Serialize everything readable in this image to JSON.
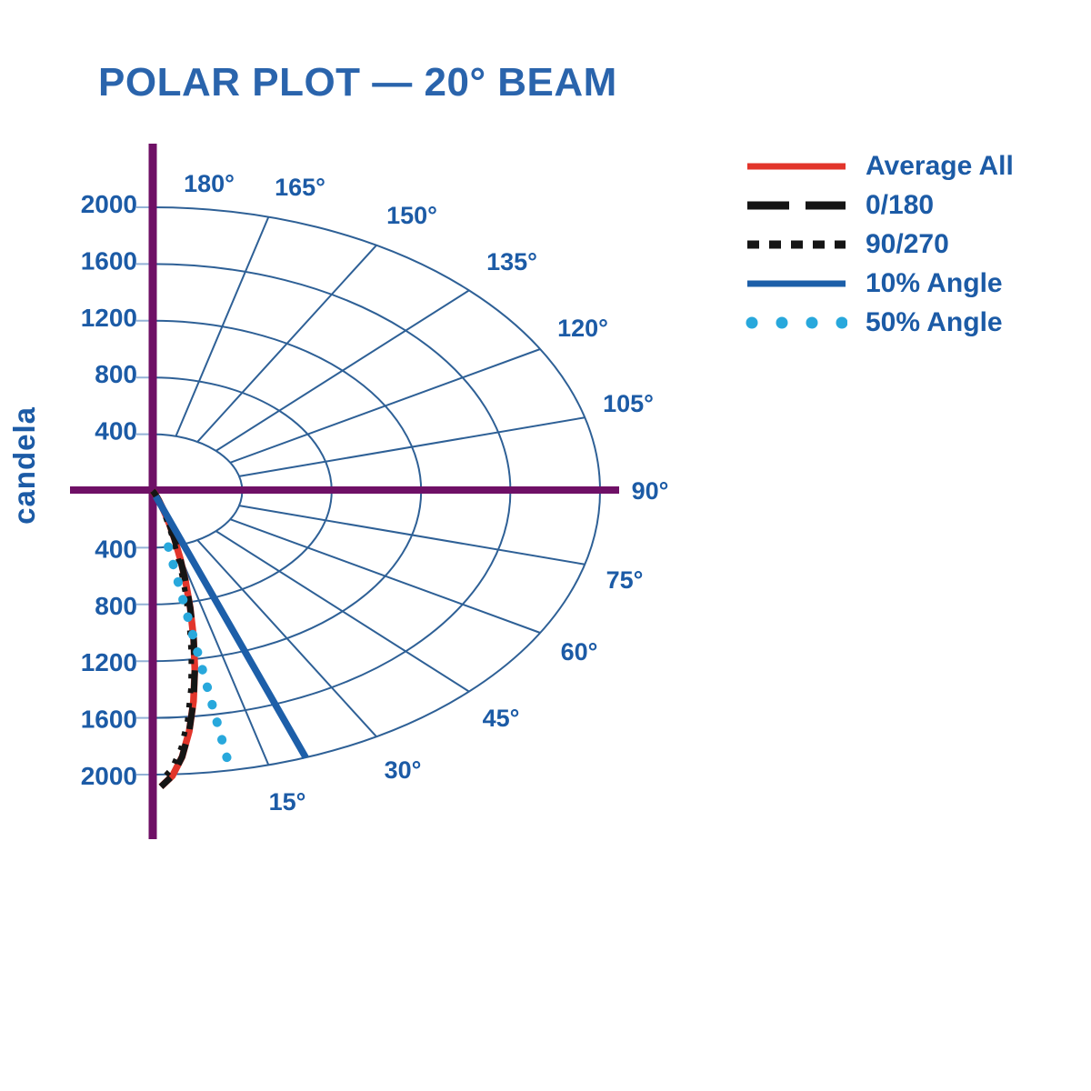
{
  "title": "POLAR PLOT — 20° BEAM",
  "chart_data": {
    "type": "polar",
    "subtype": "photometric-beam-distribution",
    "title": "POLAR PLOT — 20° BEAM",
    "radial_axis_label": "candela",
    "radial_ticks": [
      400,
      800,
      1200,
      1600,
      2000
    ],
    "radial_range": [
      0,
      2000
    ],
    "angle_values_deg": [
      15,
      30,
      45,
      60,
      75,
      90,
      105,
      120,
      135,
      150,
      165,
      180
    ],
    "angle_tick_labels": [
      "15°",
      "30°",
      "45°",
      "60°",
      "75°",
      "90°",
      "105°",
      "120°",
      "135°",
      "150°",
      "165°",
      "180°"
    ],
    "grid": true,
    "legend_position": "right",
    "colors": {
      "title": "#2a64ac",
      "labels": "#1c5ba6",
      "grid": "#2e6096",
      "axes": "#6f1066",
      "tick_marks": "#93b2d6"
    },
    "series": [
      {
        "name": "Average All",
        "type": "intensity-curve",
        "line_style": "solid",
        "color": "#e2352b",
        "peak_candela": 2100,
        "half_angle_50pct_deg": 10,
        "points": {
          "angle_deg": [
            0,
            5,
            10,
            15,
            20,
            25,
            30
          ],
          "candela": [
            2100,
            1766,
            1050,
            441,
            131,
            28,
            4
          ]
        }
      },
      {
        "name": "0/180",
        "type": "intensity-curve",
        "line_style": "long-dash",
        "color": "#151515",
        "peak_candela": 2100,
        "half_angle_50pct_deg": 10,
        "points": {
          "angle_deg": [
            0,
            5,
            10,
            15,
            20,
            25,
            30
          ],
          "candela": [
            2100,
            1766,
            1050,
            441,
            131,
            28,
            4
          ]
        }
      },
      {
        "name": "90/270",
        "type": "intensity-curve",
        "line_style": "short-dash",
        "color": "#151515",
        "peak_candela": 2060,
        "half_angle_50pct_deg": 9.4,
        "points": {
          "angle_deg": [
            0,
            5,
            10,
            15,
            20,
            25,
            30
          ],
          "candela": [
            2060,
            1693,
            940,
            353,
            89,
            15,
            2
          ]
        }
      },
      {
        "name": "10% Angle",
        "type": "angle-ray",
        "line_style": "solid",
        "color": "#1d5fa9",
        "angle_deg": 20
      },
      {
        "name": "50% Angle",
        "type": "angle-ray",
        "line_style": "dotted",
        "color": "#28a8dc",
        "angle_deg": 10
      }
    ]
  }
}
